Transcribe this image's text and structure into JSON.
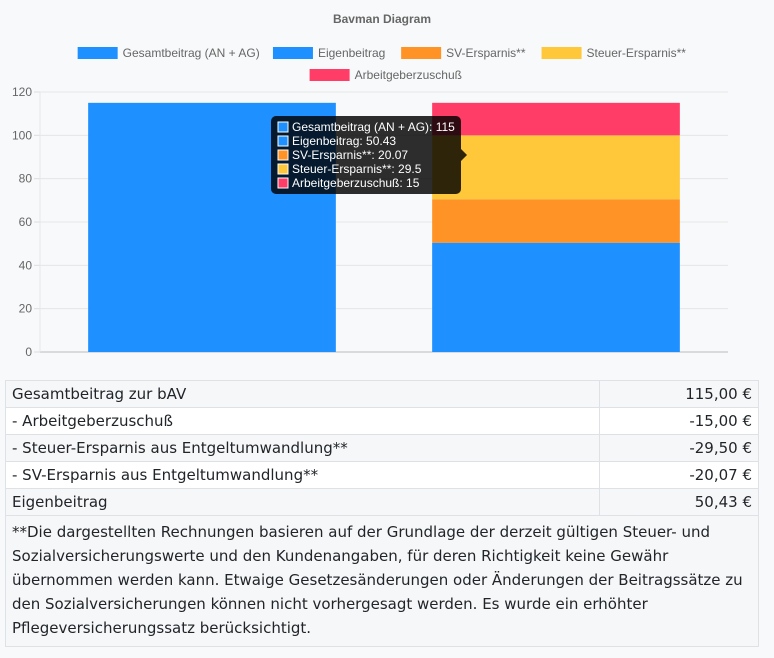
{
  "chart_data": {
    "type": "bar",
    "stacked": true,
    "title": "Bavman Diagram",
    "ylim": [
      0,
      120
    ],
    "yticks": [
      0,
      20,
      40,
      60,
      80,
      100,
      120
    ],
    "grid": true,
    "legend_position": "top",
    "series": [
      {
        "name": "Gesamtbeitrag (AN + AG)",
        "color": "#1e90ff",
        "stack": "total",
        "value": 115
      },
      {
        "name": "Eigenbeitrag",
        "color": "#1e90ff",
        "stack": "parts",
        "value": 50.43
      },
      {
        "name": "SV-Ersparnis**",
        "color": "#ff9326",
        "stack": "parts",
        "value": 20.07
      },
      {
        "name": "Steuer-Ersparnis**",
        "color": "#ffc73a",
        "stack": "parts",
        "value": 29.5
      },
      {
        "name": "Arbeitgeberzuschuß",
        "color": "#ff3d67",
        "stack": "parts",
        "value": 15
      }
    ],
    "tooltip": [
      "Gesamtbeitrag (AN + AG): 115",
      "Eigenbeitrag: 50.43",
      "SV-Ersparnis**: 20.07",
      "Steuer-Ersparnis**: 29.5",
      "Arbeitgeberzuschuß: 15"
    ]
  },
  "table": {
    "rows": [
      {
        "label": "Gesamtbeitrag zur bAV",
        "amount": "115,00 €"
      },
      {
        "label": "- Arbeitgeberzuschuß",
        "amount": "-15,00 €"
      },
      {
        "label": "- Steuer-Ersparnis aus Entgeltumwandlung**",
        "amount": "-29,50 €"
      },
      {
        "label": "- SV-Ersparnis aus Entgeltumwandlung**",
        "amount": "-20,07 €"
      },
      {
        "label": "Eigenbeitrag",
        "amount": "50,43 €"
      }
    ],
    "note": "**Die dargestellten Rechnungen basieren auf der Grundlage der derzeit gültigen Steuer- und Sozialversicherungswerte und den Kundenangaben, für deren Richtigkeit keine Gewähr übernommen werden kann. Etwaige Gesetzesänderungen oder Änderungen der Beitragssätze zu den Sozialversicherungen können nicht vorhergesagt werden. Es wurde ein erhöhter Pflegeversicherungssatz berücksichtigt."
  }
}
